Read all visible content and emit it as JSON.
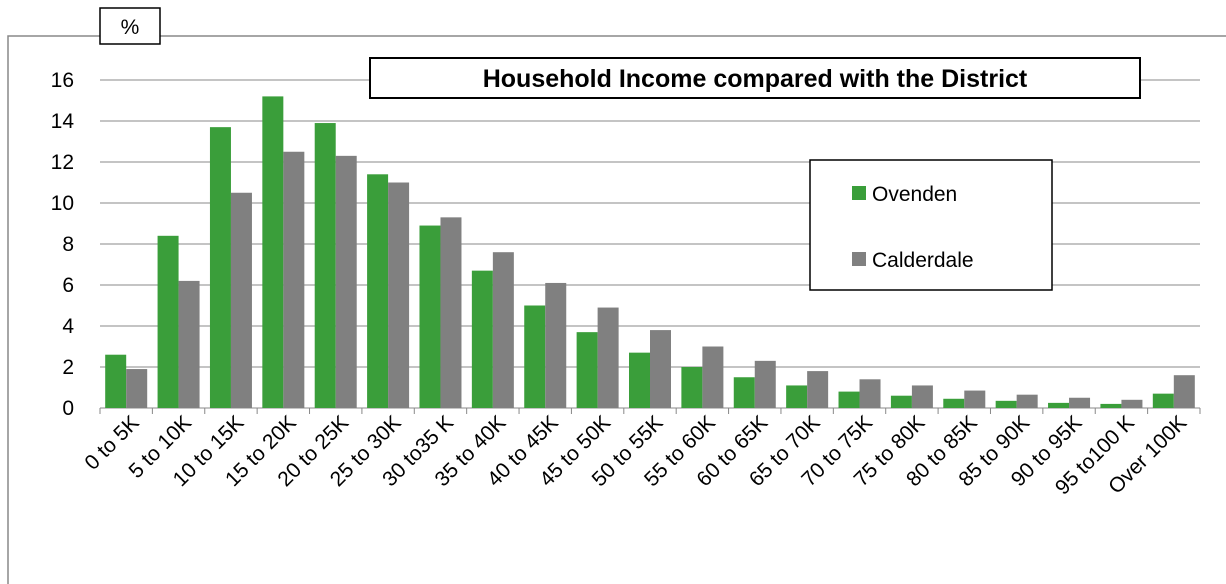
{
  "chart_data": {
    "type": "bar",
    "title": "Household Income compared with the District",
    "y_label": "%",
    "categories": [
      "0 to 5K",
      "5 to 10K",
      "10 to 15K",
      "15 to 20K",
      "20 to 25K",
      "25 to 30K",
      "30 to35 K",
      "35 to 40K",
      "40 to 45K",
      "45 to 50K",
      "50 to 55K",
      "55 to 60K",
      "60 to 65K",
      "65 to 70K",
      "70 to 75K",
      "75 to 80K",
      "80 to 85K",
      "85 to 90K",
      "90 to 95K",
      "95 to100 K",
      "Over 100K"
    ],
    "series": [
      {
        "name": "Ovenden",
        "color": "#3a9e3a",
        "values": [
          2.6,
          8.4,
          13.7,
          15.2,
          13.9,
          11.4,
          8.9,
          6.7,
          5.0,
          3.7,
          2.7,
          2.0,
          1.5,
          1.1,
          0.8,
          0.6,
          0.45,
          0.35,
          0.25,
          0.2,
          0.7
        ]
      },
      {
        "name": "Calderdale",
        "color": "#808080",
        "values": [
          1.9,
          6.2,
          10.5,
          12.5,
          12.3,
          11.0,
          9.3,
          7.6,
          6.1,
          4.9,
          3.8,
          3.0,
          2.3,
          1.8,
          1.4,
          1.1,
          0.85,
          0.65,
          0.5,
          0.4,
          1.6
        ]
      }
    ],
    "ylim": [
      0,
      16
    ],
    "yticks": [
      0,
      2,
      4,
      6,
      8,
      10,
      12,
      14,
      16
    ],
    "grid": true
  }
}
